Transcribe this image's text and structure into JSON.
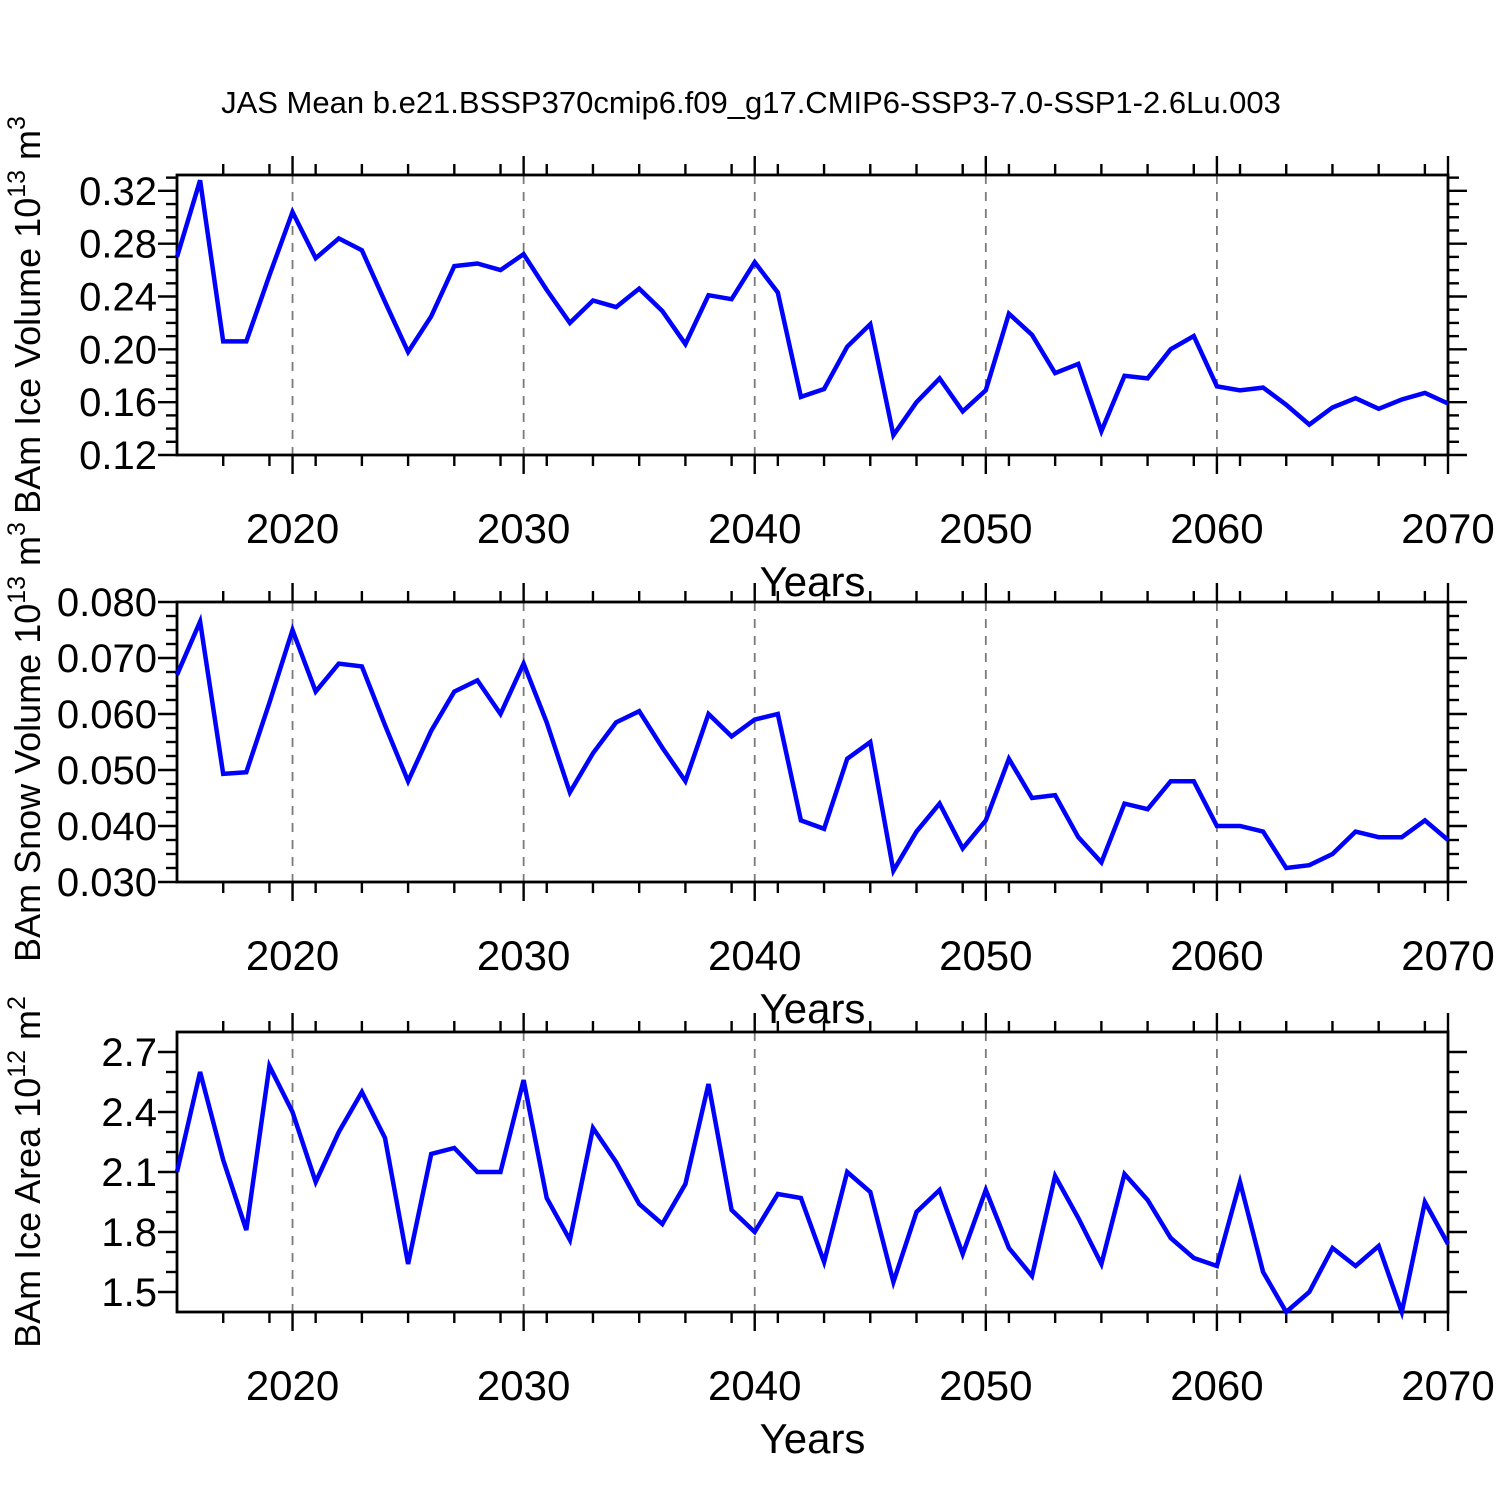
{
  "title": "JAS Mean b.e21.BSSP370cmip6.f09_g17.CMIP6-SSP3-7.0-SSP1-2.6Lu.003",
  "colors": {
    "line": "#0000ff",
    "frame": "#000000",
    "grid": "#7a7a7a",
    "text": "#000000",
    "background": "#ffffff"
  },
  "x_years": {
    "start": 2015,
    "end": 2070,
    "step": 1
  },
  "x_major_ticks": [
    2020,
    2030,
    2040,
    2050,
    2060,
    2070
  ],
  "x_tick_labels": [
    "2020",
    "2030",
    "2040",
    "2050",
    "2060",
    "2070"
  ],
  "x_minor_step": 2,
  "grid_years": [
    2020,
    2030,
    2040,
    2050,
    2060
  ],
  "xlabel": "Years",
  "chart_data": [
    {
      "type": "line",
      "name": "ice-volume",
      "ylabel": "BAm Ice Volume 10^13 m^3",
      "ylabel_parts": [
        {
          "text": "BAm Ice Volume 10",
          "sup": false
        },
        {
          "text": "13",
          "sup": true
        },
        {
          "text": " m",
          "sup": false
        },
        {
          "text": "3",
          "sup": true
        }
      ],
      "xlabel": "Years",
      "ylim": [
        0.12,
        0.332
      ],
      "y_major_ticks": [
        0.12,
        0.16,
        0.2,
        0.24,
        0.28,
        0.32
      ],
      "y_tick_labels": [
        "0.12",
        "0.16",
        "0.20",
        "0.24",
        "0.28",
        "0.32"
      ],
      "y_minor_step": 0.01,
      "legend": "none",
      "grid": "vertical-dashed-at-decades",
      "values": [
        0.27,
        0.328,
        0.206,
        0.206,
        0.256,
        0.304,
        0.269,
        0.284,
        0.275,
        0.236,
        0.198,
        0.225,
        0.263,
        0.265,
        0.26,
        0.272,
        0.245,
        0.22,
        0.237,
        0.232,
        0.246,
        0.229,
        0.204,
        0.241,
        0.238,
        0.266,
        0.243,
        0.164,
        0.17,
        0.202,
        0.219,
        0.135,
        0.16,
        0.178,
        0.153,
        0.169,
        0.227,
        0.211,
        0.182,
        0.189,
        0.138,
        0.18,
        0.178,
        0.2,
        0.21,
        0.172,
        0.169,
        0.171,
        0.158,
        0.143,
        0.156,
        0.163,
        0.155,
        0.162,
        0.167,
        0.159
      ]
    },
    {
      "type": "line",
      "name": "snow-volume",
      "ylabel": "BAm Snow Volume 10^13 m^3",
      "ylabel_parts": [
        {
          "text": "BAm Snow Volume 10",
          "sup": false
        },
        {
          "text": "13",
          "sup": true
        },
        {
          "text": " m",
          "sup": false
        },
        {
          "text": "3",
          "sup": true
        }
      ],
      "xlabel": "Years",
      "ylim": [
        0.03,
        0.08
      ],
      "y_major_ticks": [
        0.03,
        0.04,
        0.05,
        0.06,
        0.07,
        0.08
      ],
      "y_tick_labels": [
        "0.030",
        "0.040",
        "0.050",
        "0.060",
        "0.070",
        "0.080"
      ],
      "y_minor_step": 0.0025,
      "legend": "none",
      "grid": "vertical-dashed-at-decades",
      "values": [
        0.067,
        0.0765,
        0.0493,
        0.0496,
        0.062,
        0.075,
        0.064,
        0.069,
        0.0685,
        0.058,
        0.048,
        0.057,
        0.064,
        0.066,
        0.06,
        0.069,
        0.0585,
        0.046,
        0.053,
        0.0585,
        0.0605,
        0.054,
        0.048,
        0.06,
        0.056,
        0.059,
        0.06,
        0.041,
        0.0395,
        0.052,
        0.055,
        0.032,
        0.039,
        0.044,
        0.036,
        0.041,
        0.052,
        0.045,
        0.0455,
        0.038,
        0.0335,
        0.044,
        0.043,
        0.048,
        0.048,
        0.04,
        0.04,
        0.039,
        0.0325,
        0.033,
        0.035,
        0.039,
        0.038,
        0.038,
        0.041,
        0.0375
      ]
    },
    {
      "type": "line",
      "name": "ice-area",
      "ylabel": "BAm Ice Area 10^12 m^2",
      "ylabel_parts": [
        {
          "text": "BAm Ice Area 10",
          "sup": false
        },
        {
          "text": "12",
          "sup": true
        },
        {
          "text": " m",
          "sup": false
        },
        {
          "text": "2",
          "sup": true
        }
      ],
      "xlabel": "Years",
      "ylim": [
        1.4,
        2.8
      ],
      "y_major_ticks": [
        1.5,
        1.8,
        2.1,
        2.4,
        2.7
      ],
      "y_tick_labels": [
        "1.5",
        "1.8",
        "2.1",
        "2.4",
        "2.7"
      ],
      "y_minor_step": 0.1,
      "legend": "none",
      "grid": "vertical-dashed-at-decades",
      "values": [
        2.1,
        2.6,
        2.16,
        1.81,
        2.63,
        2.4,
        2.05,
        2.3,
        2.5,
        2.27,
        1.64,
        2.19,
        2.22,
        2.1,
        2.1,
        2.56,
        1.97,
        1.76,
        2.32,
        2.15,
        1.94,
        1.84,
        2.04,
        2.54,
        1.91,
        1.8,
        1.99,
        1.97,
        1.65,
        2.1,
        2.0,
        1.55,
        1.9,
        2.01,
        1.69,
        2.01,
        1.72,
        1.58,
        2.08,
        1.87,
        1.64,
        2.09,
        1.96,
        1.77,
        1.67,
        1.63,
        2.05,
        1.6,
        1.4,
        1.5,
        1.72,
        1.63,
        1.73,
        1.4,
        1.95,
        1.74
      ]
    }
  ]
}
